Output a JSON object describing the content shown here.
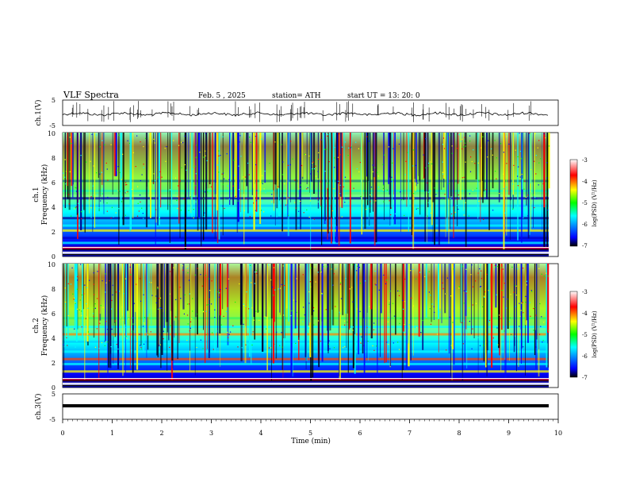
{
  "header": {
    "title": "VLF Spectra",
    "date": "Feb. 5  , 2025",
    "station": "station= ATH",
    "start_ut": "start  UT  =   13: 20: 0"
  },
  "chart_data": [
    {
      "type": "line",
      "panel": "ch1-waveform",
      "ylabel": "ch.1(V)",
      "yticks": [
        "5",
        "-5"
      ],
      "ylim": [
        -5,
        5
      ],
      "xlim": [
        0,
        10
      ],
      "trace": "noisy waveform around 0 V with spikes"
    },
    {
      "type": "heatmap",
      "panel": "ch1-spectrogram",
      "ylabel_channel": "ch.1",
      "ylabel": "Frequency  (kHz)",
      "yticks": [
        "0",
        "2",
        "4",
        "6",
        "8",
        "10"
      ],
      "ylim": [
        0,
        10
      ],
      "xlim": [
        0,
        9.8
      ],
      "colorbar": {
        "label": "log(PSD) (V²/Hz)",
        "ticks": [
          "-3",
          "-4",
          "-5",
          "-6",
          "-7"
        ],
        "range": [
          -7,
          -3
        ],
        "colormap": "jet"
      }
    },
    {
      "type": "heatmap",
      "panel": "ch2-spectrogram",
      "ylabel_channel": "ch.2",
      "ylabel": "Frequency  (kHz)",
      "yticks": [
        "0",
        "2",
        "4",
        "6",
        "8",
        "10"
      ],
      "ylim": [
        0,
        10
      ],
      "xlim": [
        0,
        9.8
      ],
      "colorbar": {
        "label": "log(PSD) (V²/Hz)",
        "ticks": [
          "-3",
          "-4",
          "-5",
          "-6",
          "-7"
        ],
        "range": [
          -7,
          -3
        ],
        "colormap": "jet"
      }
    },
    {
      "type": "line",
      "panel": "ch3-waveform",
      "ylabel": "ch.3(V)",
      "yticks": [
        "5",
        "-5"
      ],
      "ylim": [
        -5,
        5
      ],
      "xlim": [
        0,
        10
      ],
      "trace": "flat thick line near -1 V"
    }
  ],
  "x_axis": {
    "label": "Time  (min)",
    "ticks": [
      "0",
      "1",
      "2",
      "3",
      "4",
      "5",
      "6",
      "7",
      "8",
      "9",
      "10"
    ],
    "range": [
      0,
      10
    ]
  }
}
